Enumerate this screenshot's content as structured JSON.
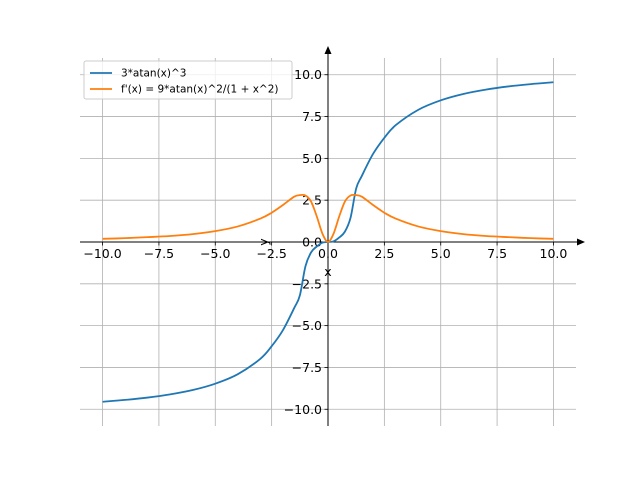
{
  "chart_data": {
    "type": "line",
    "title": "",
    "xlabel": "x",
    "ylabel": "y",
    "xlim": [
      -11,
      11
    ],
    "ylim": [
      -11,
      11
    ],
    "grid": true,
    "legend_position": "top-left",
    "axes_through_origin": true,
    "x_ticks": [
      -10,
      -7.5,
      -5,
      -2.5,
      0,
      2.5,
      5,
      7.5,
      10
    ],
    "x_tick_labels": [
      "−10.0",
      "−7.5",
      "−5.0",
      "−2.5",
      "0.0",
      "2.5",
      "5.0",
      "7.5",
      "10.0"
    ],
    "y_ticks": [
      -10,
      -7.5,
      -5,
      -2.5,
      0,
      2.5,
      5,
      7.5,
      10
    ],
    "y_tick_labels": [
      "−10.0",
      "−7.5",
      "−5.0",
      "−2.5",
      "0.0",
      "2.5",
      "5.0",
      "7.5",
      "10.0"
    ],
    "series": [
      {
        "name": "3*atan(x)^3",
        "color": "#1f77b4",
        "x": [
          -10,
          -9,
          -8,
          -7,
          -6,
          -5,
          -4,
          -3,
          -2.5,
          -2,
          -1.5,
          -1.25,
          -1,
          -0.75,
          -0.5,
          -0.25,
          0,
          0.25,
          0.5,
          0.75,
          1,
          1.25,
          1.5,
          2,
          2.5,
          3,
          4,
          5,
          6,
          7,
          8,
          9,
          10
        ],
        "y": [
          -9.55,
          -9.44,
          -9.3,
          -9.11,
          -8.85,
          -8.47,
          -7.9,
          -6.98,
          -6.23,
          -5.27,
          -3.95,
          -3.2,
          -1.45,
          -0.62,
          -0.27,
          -0.04,
          0,
          0.04,
          0.27,
          0.62,
          1.45,
          3.2,
          3.95,
          5.27,
          6.23,
          6.98,
          7.9,
          8.47,
          8.85,
          9.11,
          9.3,
          9.44,
          9.55
        ]
      },
      {
        "name": "f'(x) = 9*atan(x)^2/(1 + x^2)",
        "color": "#ff7f0e",
        "x": [
          -10,
          -9,
          -8,
          -7,
          -6,
          -5,
          -4,
          -3,
          -2.5,
          -2,
          -1.5,
          -1.25,
          -1,
          -0.75,
          -0.5,
          -0.25,
          0,
          0.25,
          0.5,
          0.75,
          1,
          1.25,
          1.5,
          2,
          2.5,
          3,
          4,
          5,
          6,
          7,
          8,
          9,
          10
        ],
        "y": [
          0.19,
          0.23,
          0.29,
          0.36,
          0.47,
          0.65,
          0.93,
          1.4,
          1.75,
          2.21,
          2.71,
          2.8,
          2.78,
          2.42,
          1.54,
          0.51,
          0,
          0.51,
          1.54,
          2.42,
          2.78,
          2.8,
          2.71,
          2.21,
          1.75,
          1.4,
          0.93,
          0.65,
          0.47,
          0.36,
          0.29,
          0.23,
          0.19
        ]
      }
    ]
  }
}
